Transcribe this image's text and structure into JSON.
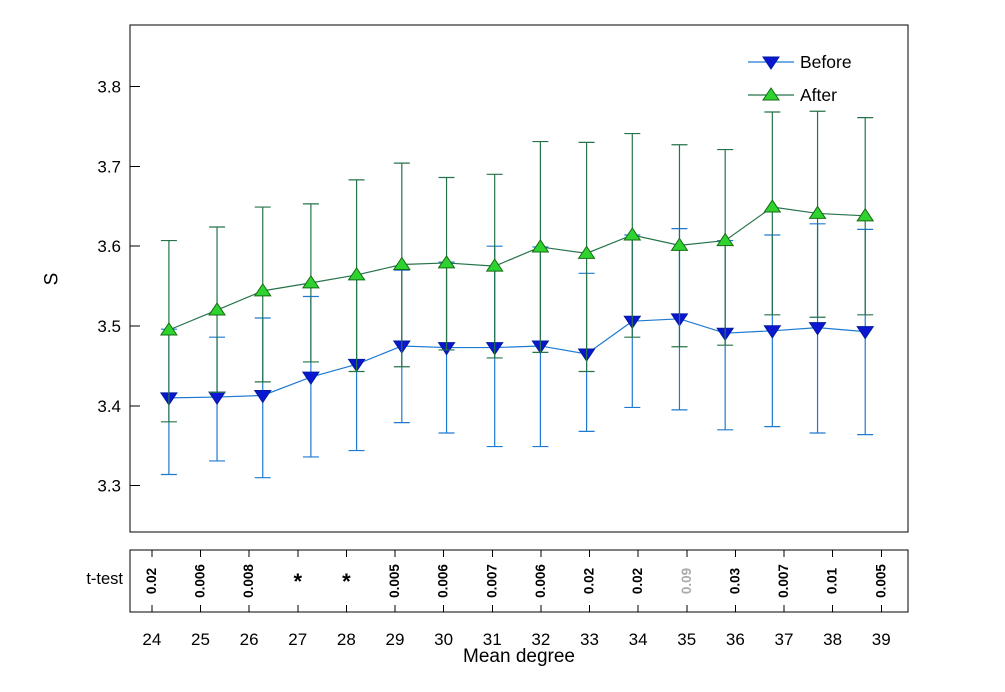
{
  "chart_data": {
    "type": "line",
    "title": "",
    "xlabel": "Mean degree",
    "ylabel": "S",
    "ttest_label": "t-test",
    "legend_position": "top-right",
    "grid": false,
    "xlim": [
      23.55,
      39.55
    ],
    "ylim": [
      3.242,
      3.877
    ],
    "x_ticks": [
      24,
      25,
      26,
      27,
      28,
      29,
      30,
      31,
      32,
      33,
      34,
      35,
      36,
      37,
      38,
      39
    ],
    "y_ticks": [
      3.3,
      3.4,
      3.5,
      3.6,
      3.7,
      3.8
    ],
    "x": [
      24.35,
      25.34,
      26.28,
      27.27,
      28.21,
      29.14,
      30.06,
      31.05,
      31.99,
      32.94,
      33.88,
      34.85,
      35.79,
      36.76,
      37.69,
      38.67
    ],
    "series": [
      {
        "name": "Before",
        "marker": "triangle-down",
        "line_color": "#1e7ad1",
        "marker_fill": "#0a16d2",
        "marker_edge": "#001a9e",
        "y": [
          3.41,
          3.411,
          3.413,
          3.436,
          3.452,
          3.475,
          3.473,
          3.473,
          3.475,
          3.465,
          3.506,
          3.509,
          3.491,
          3.494,
          3.498,
          3.493
        ],
        "y_upper": [
          3.496,
          3.486,
          3.51,
          3.537,
          3.559,
          3.57,
          3.58,
          3.6,
          3.599,
          3.566,
          3.614,
          3.622,
          3.607,
          3.614,
          3.628,
          3.621
        ],
        "y_lower": [
          3.314,
          3.331,
          3.31,
          3.336,
          3.344,
          3.379,
          3.366,
          3.349,
          3.349,
          3.368,
          3.398,
          3.395,
          3.37,
          3.374,
          3.366,
          3.364
        ]
      },
      {
        "name": "After",
        "marker": "triangle-up",
        "line_color": "#26734a",
        "marker_fill": "#2fd32f",
        "marker_edge": "#156b15",
        "y": [
          3.495,
          3.52,
          3.544,
          3.554,
          3.564,
          3.577,
          3.579,
          3.575,
          3.599,
          3.591,
          3.614,
          3.601,
          3.607,
          3.649,
          3.641,
          3.638
        ],
        "y_upper": [
          3.607,
          3.624,
          3.649,
          3.653,
          3.683,
          3.704,
          3.686,
          3.69,
          3.731,
          3.73,
          3.741,
          3.727,
          3.721,
          3.768,
          3.769,
          3.761
        ],
        "y_lower": [
          3.38,
          3.417,
          3.43,
          3.455,
          3.443,
          3.449,
          3.47,
          3.46,
          3.467,
          3.443,
          3.486,
          3.474,
          3.476,
          3.514,
          3.511,
          3.514
        ]
      }
    ],
    "ttest": {
      "values": [
        "0.02",
        "0.006",
        "0.008",
        "*",
        "*",
        "0.005",
        "0.006",
        "0.007",
        "0.006",
        "0.02",
        "0.02",
        "0.09",
        "0.03",
        "0.007",
        "0.01",
        "0.005"
      ],
      "gray_index": 11,
      "gray_color": "#ababab",
      "text_color": "#000000"
    },
    "frame_color": "#000000"
  }
}
